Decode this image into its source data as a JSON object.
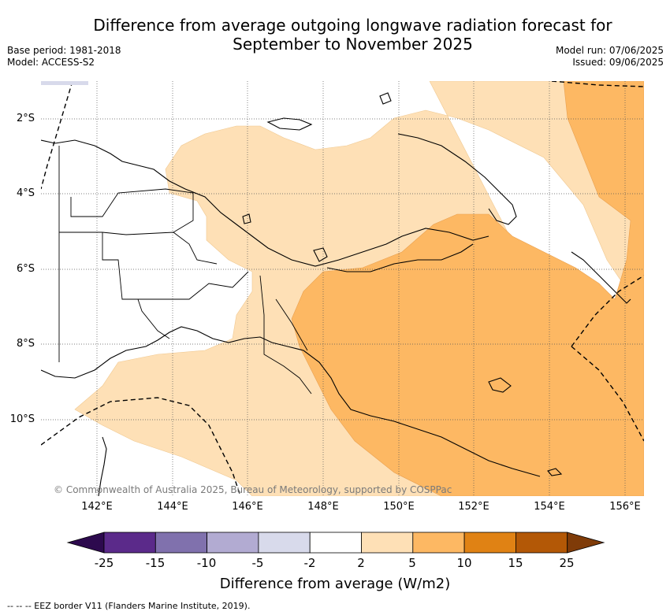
{
  "title_line1": "Difference from average outgoing longwave radiation forecast for",
  "title_line2": "September to November 2025",
  "base_period": "Base period: 1981-2018",
  "model": "Model: ACCESS-S2",
  "model_run": "Model run: 07/06/2025",
  "issued": "Issued: 09/06/2025",
  "copyright": "© Commonwealth of Australia 2025, Bureau of Meteorology, supported by COSPPac",
  "lat_labels": [
    "2°S",
    "4°S",
    "6°S",
    "8°S",
    "10°S"
  ],
  "lon_labels": [
    "142°E",
    "144°E",
    "146°E",
    "148°E",
    "150°E",
    "152°E",
    "154°E",
    "156°E"
  ],
  "colorbar": {
    "ticks": [
      "-25",
      "-15",
      "-10",
      "-5",
      "-2",
      "2",
      "5",
      "10",
      "15",
      "25"
    ],
    "colors": [
      "#2d0a4e",
      "#5b2a8a",
      "#8071ad",
      "#b2abd2",
      "#d8daeb",
      "#ffffff",
      "#fee0b6",
      "#fdb863",
      "#e08214",
      "#b35806",
      "#7f3b08"
    ],
    "label": "Difference from average (W/m2)"
  },
  "footer": "--  --  -- EEZ border V11 (Flanders Marine Institute, 2019)."
}
